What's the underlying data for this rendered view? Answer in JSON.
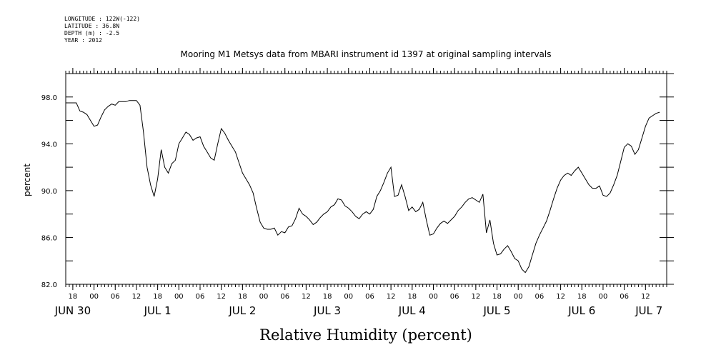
{
  "metadata": [
    {
      "key": "LONGITUDE",
      "value": "122W(-122)"
    },
    {
      "key": "LATITUDE",
      "value": "36.8N"
    },
    {
      "key": "DEPTH (m)",
      "value": "-2.5"
    },
    {
      "key": "YEAR",
      "value": "2012"
    }
  ],
  "chart_data": {
    "type": "line",
    "title": "Mooring M1 Metsys data from MBARI instrument id 1397 at original sampling intervals",
    "xlabel": "Relative Humidity (percent)",
    "ylabel": "percent",
    "x_unit": "hour",
    "xlim": [
      -8,
      162
    ],
    "ylim": [
      82.0,
      100.0
    ],
    "y_ticks": [
      82.0,
      86.0,
      90.0,
      94.0,
      98.0
    ],
    "y_tick_labels": [
      "82.0",
      "86.0",
      "90.0",
      "94.0",
      "98.0"
    ],
    "hour_ticks": [
      {
        "x": -6,
        "label": "18"
      },
      {
        "x": 0,
        "label": "00"
      },
      {
        "x": 6,
        "label": "06"
      },
      {
        "x": 12,
        "label": "12"
      },
      {
        "x": 18,
        "label": "18"
      },
      {
        "x": 24,
        "label": "00"
      },
      {
        "x": 30,
        "label": "06"
      },
      {
        "x": 36,
        "label": "12"
      },
      {
        "x": 42,
        "label": "18"
      },
      {
        "x": 48,
        "label": "00"
      },
      {
        "x": 54,
        "label": "06"
      },
      {
        "x": 60,
        "label": "12"
      },
      {
        "x": 66,
        "label": "18"
      },
      {
        "x": 72,
        "label": "00"
      },
      {
        "x": 78,
        "label": "06"
      },
      {
        "x": 84,
        "label": "12"
      },
      {
        "x": 90,
        "label": "18"
      },
      {
        "x": 96,
        "label": "00"
      },
      {
        "x": 102,
        "label": "06"
      },
      {
        "x": 108,
        "label": "12"
      },
      {
        "x": 114,
        "label": "18"
      },
      {
        "x": 120,
        "label": "00"
      },
      {
        "x": 126,
        "label": "06"
      },
      {
        "x": 132,
        "label": "12"
      },
      {
        "x": 138,
        "label": "18"
      },
      {
        "x": 144,
        "label": "00"
      },
      {
        "x": 150,
        "label": "06"
      },
      {
        "x": 156,
        "label": "12"
      }
    ],
    "day_labels": [
      {
        "x": -6,
        "label": "JUN 30"
      },
      {
        "x": 18,
        "label": "JUL  1"
      },
      {
        "x": 42,
        "label": "JUL  2"
      },
      {
        "x": 66,
        "label": "JUL  3"
      },
      {
        "x": 90,
        "label": "JUL  4"
      },
      {
        "x": 114,
        "label": "JUL  5"
      },
      {
        "x": 138,
        "label": "JUL  6"
      },
      {
        "x": 157,
        "label": "JUL  7"
      }
    ],
    "series": [
      {
        "color": "#000000",
        "x": [
          -8,
          -5,
          -4,
          -3,
          -2,
          -1,
          0,
          1,
          2,
          3,
          4,
          5,
          6,
          7,
          8,
          9,
          10,
          11,
          12,
          13,
          14,
          15,
          16,
          17,
          18,
          19,
          20,
          21,
          22,
          23,
          24,
          25,
          26,
          27,
          28,
          29,
          30,
          31,
          32,
          33,
          34,
          35,
          36,
          37,
          38,
          39,
          40,
          41,
          42,
          43,
          44,
          45,
          46,
          47,
          48,
          49,
          50,
          51,
          52,
          53,
          54,
          55,
          56,
          57,
          58,
          59,
          60,
          61,
          62,
          63,
          64,
          65,
          66,
          67,
          68,
          69,
          70,
          71,
          72,
          73,
          74,
          75,
          76,
          77,
          78,
          79,
          80,
          81,
          82,
          83,
          84,
          85,
          86,
          87,
          88,
          89,
          90,
          91,
          92,
          93,
          94,
          95,
          96,
          97,
          98,
          99,
          100,
          101,
          102,
          103,
          104,
          105,
          106,
          107,
          108,
          109,
          110,
          111,
          112,
          113,
          114,
          115,
          116,
          117,
          118,
          119,
          120,
          121,
          122,
          123,
          124,
          125,
          126,
          127,
          128,
          129,
          130,
          131,
          132,
          133,
          134,
          135,
          136,
          137,
          138,
          139,
          140,
          141,
          142,
          143,
          144,
          145,
          146,
          147,
          148,
          149,
          150,
          151,
          152,
          153,
          154,
          155,
          156,
          157,
          158,
          159,
          160
        ],
        "y": [
          97.5,
          97.5,
          96.8,
          96.7,
          96.5,
          96.0,
          95.5,
          95.6,
          96.3,
          96.9,
          97.2,
          97.4,
          97.3,
          97.6,
          97.6,
          97.6,
          97.7,
          97.7,
          97.7,
          97.3,
          95.0,
          92.0,
          90.5,
          89.5,
          91.0,
          93.5,
          92.0,
          91.5,
          92.3,
          92.6,
          94.0,
          94.5,
          95.0,
          94.8,
          94.3,
          94.5,
          94.6,
          93.8,
          93.3,
          92.8,
          92.6,
          94.0,
          95.3,
          94.9,
          94.3,
          93.8,
          93.3,
          92.4,
          91.5,
          91.0,
          90.5,
          89.8,
          88.5,
          87.3,
          86.8,
          86.7,
          86.7,
          86.8,
          86.2,
          86.5,
          86.4,
          86.9,
          87.0,
          87.6,
          88.5,
          88.0,
          87.8,
          87.5,
          87.1,
          87.3,
          87.7,
          88.0,
          88.2,
          88.6,
          88.8,
          89.3,
          89.2,
          88.7,
          88.5,
          88.2,
          87.8,
          87.6,
          88.0,
          88.2,
          88.0,
          88.4,
          89.5,
          90.0,
          90.7,
          91.5,
          92.0,
          89.5,
          89.6,
          90.5,
          89.5,
          88.3,
          88.6,
          88.2,
          88.4,
          89.0,
          87.5,
          86.2,
          86.3,
          86.8,
          87.2,
          87.4,
          87.2,
          87.5,
          87.8,
          88.3,
          88.6,
          89.0,
          89.3,
          89.4,
          89.2,
          89.0,
          89.7,
          86.4,
          87.5,
          85.5,
          84.5,
          84.6,
          85.0,
          85.3,
          84.8,
          84.2,
          84.0,
          83.3,
          83.0,
          83.5,
          84.5,
          85.5,
          86.2,
          86.8,
          87.4,
          88.3,
          89.3,
          90.2,
          90.9,
          91.3,
          91.5,
          91.3,
          91.7,
          92.0,
          91.5,
          91.0,
          90.5,
          90.2,
          90.2,
          90.4,
          89.6,
          89.5,
          89.8,
          90.5,
          91.3,
          92.5,
          93.7,
          94.0,
          93.8,
          93.1,
          93.5,
          94.5,
          95.5,
          96.2,
          96.4,
          96.6,
          96.7
        ]
      }
    ]
  }
}
